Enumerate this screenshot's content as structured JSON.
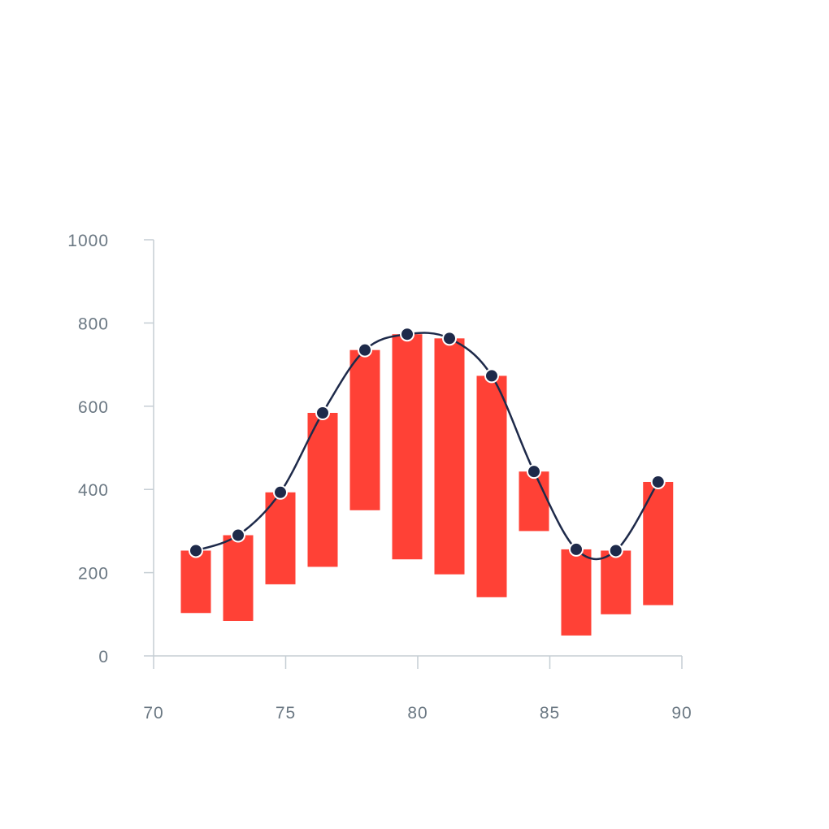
{
  "chart_data": {
    "type": "bar",
    "title": "",
    "xlabel": "",
    "ylabel": "",
    "xlim": [
      70,
      90
    ],
    "ylim": [
      0,
      1000
    ],
    "x_ticks": [
      "70",
      "75",
      "80",
      "85",
      "90"
    ],
    "y_ticks": [
      "0",
      "200",
      "400",
      "600",
      "800",
      "1000"
    ],
    "grid": false,
    "colors": {
      "bar": "#ff4136",
      "line": "#1e2a4a",
      "point": "#1e2a4a",
      "axis": "#c5ced4",
      "tick_text": "#6b7883"
    },
    "bars": [
      {
        "x": 71.6,
        "low": 103,
        "high": 253
      },
      {
        "x": 73.2,
        "low": 84,
        "high": 290
      },
      {
        "x": 74.8,
        "low": 172,
        "high": 393
      },
      {
        "x": 76.4,
        "low": 214,
        "high": 584
      },
      {
        "x": 78.0,
        "low": 350,
        "high": 735
      },
      {
        "x": 79.6,
        "low": 232,
        "high": 773
      },
      {
        "x": 81.2,
        "low": 196,
        "high": 763
      },
      {
        "x": 82.8,
        "low": 141,
        "high": 673
      },
      {
        "x": 84.4,
        "low": 300,
        "high": 443
      },
      {
        "x": 86.0,
        "low": 49,
        "high": 256
      },
      {
        "x": 87.5,
        "low": 100,
        "high": 253
      },
      {
        "x": 89.1,
        "low": 122,
        "high": 418
      }
    ],
    "series": [
      {
        "type": "line",
        "x": [
          71.6,
          73.2,
          74.8,
          76.4,
          78.0,
          79.6,
          81.2,
          82.8,
          84.4,
          86.0,
          87.5,
          89.1
        ],
        "values": [
          253,
          290,
          393,
          584,
          735,
          773,
          763,
          673,
          443,
          256,
          253,
          418
        ]
      }
    ]
  }
}
